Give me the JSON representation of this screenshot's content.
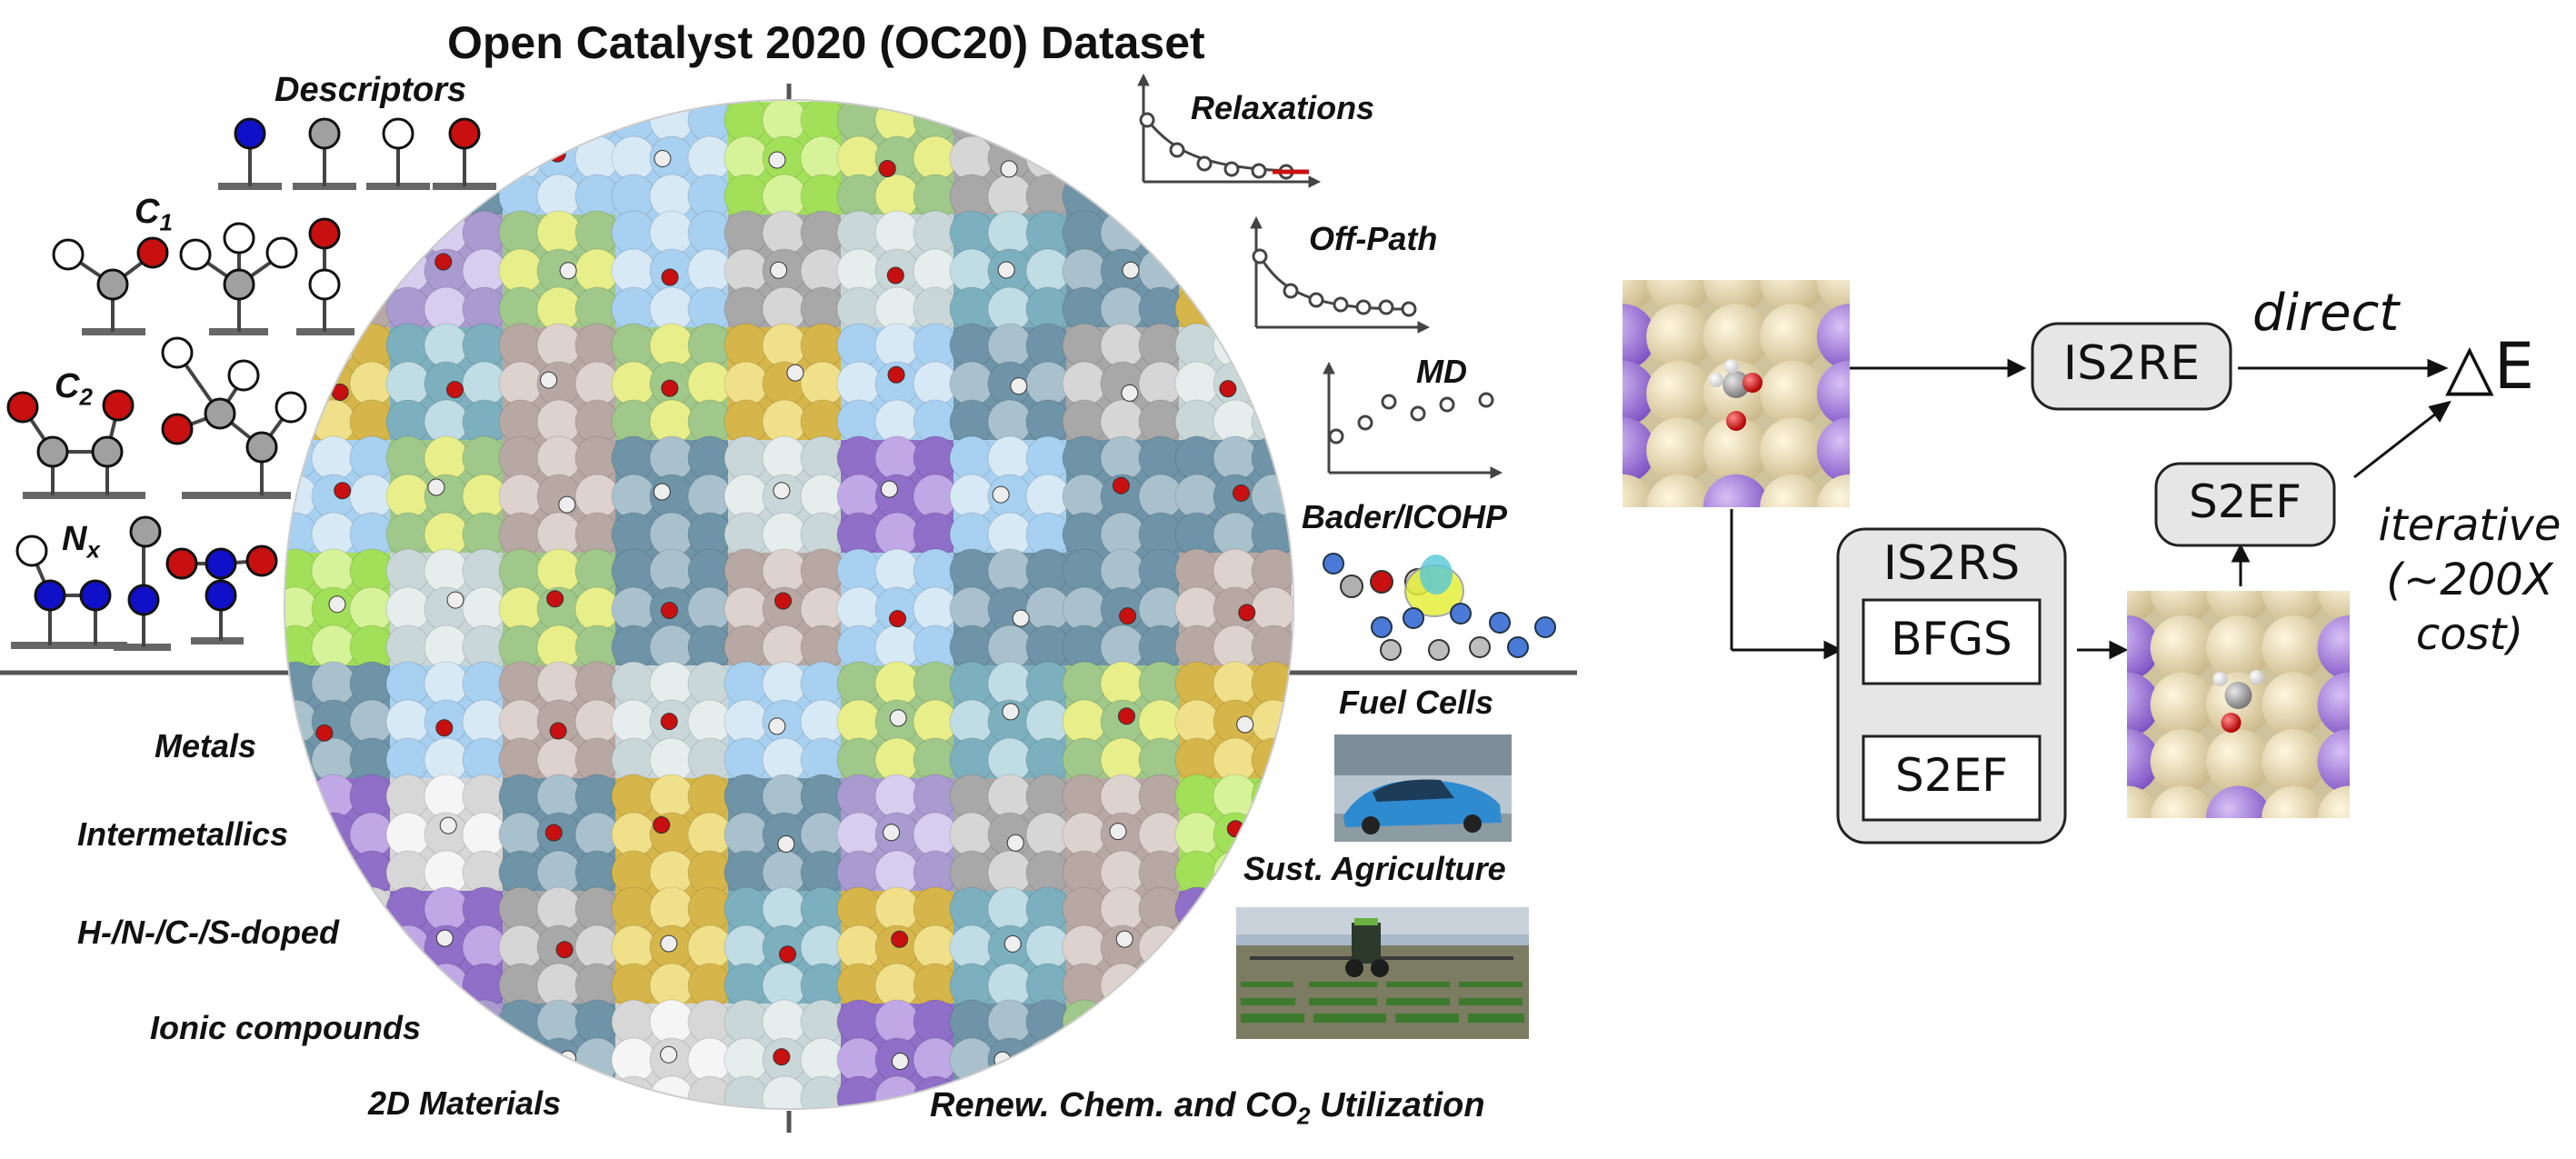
{
  "title": "Open Catalyst 2020 (OC20) Dataset",
  "left_labels": {
    "descriptors": "Descriptors",
    "c1": "C",
    "c1_sub": "1",
    "c2": "C",
    "c2_sub": "2",
    "nx": "N",
    "nx_sub": "x"
  },
  "material_classes": [
    "Metals",
    "Intermetallics",
    "H-/N-/C-/S-doped",
    "Ionic compounds",
    "2D Materials"
  ],
  "calculations": {
    "relaxations": "Relaxations",
    "off_path": "Off-Path",
    "md": "MD",
    "bader": "Bader/ICOHP"
  },
  "applications": {
    "fuel_cells": "Fuel Cells",
    "agriculture": "Sust. Agriculture",
    "renewable_prefix": "Renew. Chem. and CO",
    "renewable_sub": "2",
    "renewable_suffix": " Utilization"
  },
  "tasks": {
    "is2re": "IS2RE",
    "is2rs": "IS2RS",
    "bfgs": "BFGS",
    "s2ef_inner": "S2EF",
    "s2ef": "S2EF",
    "direct": "direct",
    "energy": "△E",
    "iterative_1": "iterative",
    "iterative_2": "(~200X",
    "iterative_3": "cost)"
  },
  "colors": {
    "box_fill": "#e6e6e6",
    "atom_red": "#c81010",
    "atom_blue": "#1010c8",
    "atom_gray": "#a0a0a0",
    "slab_cream": "#e9dcb6",
    "slab_purple": "#a47ad8"
  }
}
